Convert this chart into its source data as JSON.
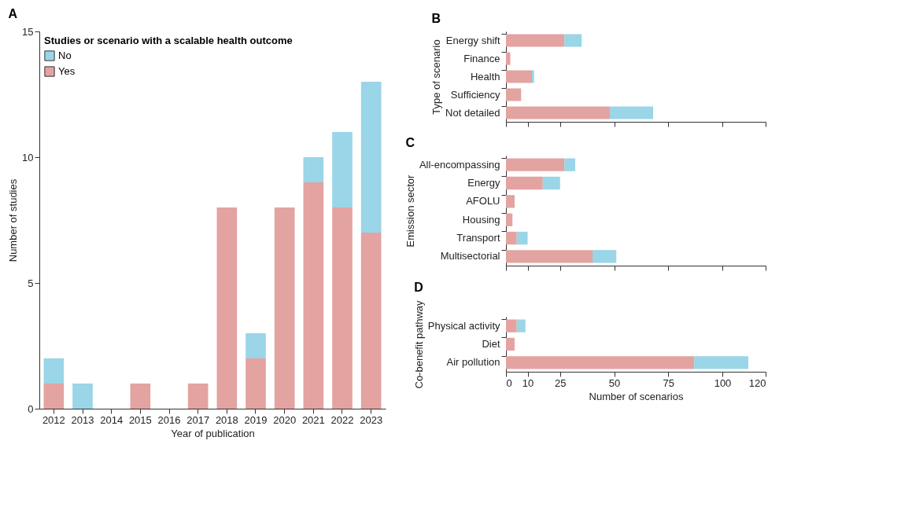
{
  "chart_data": [
    {
      "type": "bar",
      "title": "A",
      "xlabel": "Year of publication",
      "ylabel": "Number of studies",
      "legend_title": "Studies or scenario with a scalable health outcome",
      "categories": [
        "2012",
        "2013",
        "2014",
        "2015",
        "2016",
        "2017",
        "2018",
        "2019",
        "2020",
        "2021",
        "2022",
        "2023"
      ],
      "stacked": true,
      "ylim": [
        0,
        15
      ],
      "yticks": [
        0,
        5,
        10,
        15
      ],
      "grid": false,
      "legend": "top left",
      "series": [
        {
          "name": "Yes",
          "color": "#e3a3a1",
          "values": [
            1,
            0,
            0,
            1,
            0,
            1,
            8,
            2,
            8,
            9,
            8,
            7
          ]
        },
        {
          "name": "No",
          "color": "#9ad5e8",
          "values": [
            1,
            1,
            0,
            0,
            0,
            0,
            0,
            1,
            0,
            1,
            3,
            6
          ]
        }
      ]
    },
    {
      "type": "bar",
      "title": "B",
      "ylabel": "Type of scenario",
      "orientation": "horizontal",
      "stacked": true,
      "categories": [
        "Energy shift",
        "Finance",
        "Health",
        "Sufficiency",
        "Not detailed"
      ],
      "xlim": [
        0,
        120
      ],
      "xticks": [
        0,
        10,
        25,
        50,
        75,
        100,
        120
      ],
      "tick_labels": "y",
      "grid": false,
      "series": [
        {
          "color": "#e3a3a1",
          "values": [
            27,
            2,
            12,
            7,
            48
          ]
        },
        {
          "color": "#9ad5e8",
          "values": [
            8,
            0,
            1,
            0,
            20
          ]
        }
      ]
    },
    {
      "type": "bar",
      "title": "C",
      "ylabel": "Emission sector",
      "orientation": "horizontal",
      "stacked": true,
      "categories": [
        "All-encompassing",
        "Energy",
        "AFOLU",
        "Housing",
        "Transport",
        "Multisectorial"
      ],
      "xlim": [
        0,
        120
      ],
      "xticks": [
        0,
        10,
        25,
        50,
        75,
        100,
        120
      ],
      "tick_labels": "y",
      "grid": false,
      "series": [
        {
          "color": "#e3a3a1",
          "values": [
            27,
            17,
            4,
            3,
            5,
            40
          ]
        },
        {
          "color": "#9ad5e8",
          "values": [
            5,
            8,
            0,
            0,
            5,
            11
          ]
        }
      ]
    },
    {
      "type": "bar",
      "title": "D",
      "ylabel": "Co-benefit pathway",
      "xlabel": "Number of scenarios",
      "orientation": "horizontal",
      "stacked": true,
      "categories": [
        "Physical activity",
        "Diet",
        "Air pollution"
      ],
      "xlim": [
        0,
        120
      ],
      "xticks": [
        0,
        10,
        25,
        50,
        75,
        100,
        120
      ],
      "grid": false,
      "series": [
        {
          "color": "#e3a3a1",
          "values": [
            5,
            4,
            87
          ]
        },
        {
          "color": "#9ad5e8",
          "values": [
            4,
            0,
            25
          ]
        }
      ]
    }
  ]
}
